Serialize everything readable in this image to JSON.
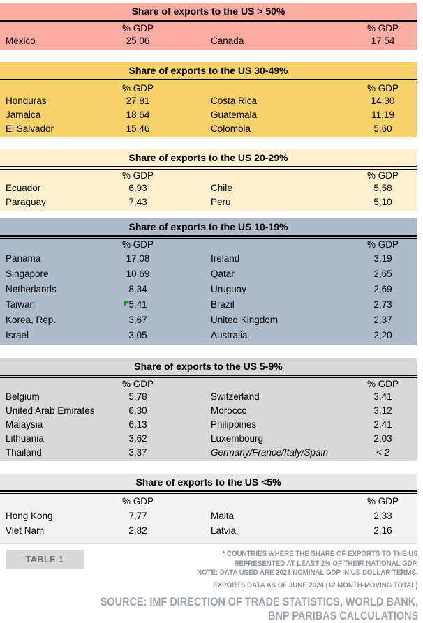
{
  "colors": {
    "band_gt50": "#FBACA3",
    "band_30_49": "#F7D26B",
    "band_20_29": "#FCF0CE",
    "band_10_19": "#AEBBCA",
    "band_5_9": "#D8D8D8",
    "band_lt5": "#F2F2F2",
    "band_lt5_title": "#E8E8E8",
    "marker_green": "#1E8C2D",
    "footnote_gray": "#8D9297",
    "source_gray": "#9DA3A9",
    "table_label_bg": "#D9D9D9"
  },
  "sections": [
    {
      "id": "gt50",
      "title": "Share of exports to the US > 50%",
      "col_header": "% GDP",
      "bg": "#FBACA3",
      "rule": "thick",
      "rows": [
        {
          "left_country": "Mexico",
          "left_value": "25,06",
          "right_country": "Canada",
          "right_value": "17,54"
        }
      ]
    },
    {
      "id": "30-49",
      "title": "Share of exports to the US 30-49%",
      "col_header": "% GDP",
      "bg": "#F7D26B",
      "rule": "double",
      "rows": [
        {
          "left_country": "Honduras",
          "left_value": "27,81",
          "right_country": "Costa Rica",
          "right_value": "14,30"
        },
        {
          "left_country": "Jamaica",
          "left_value": "18,64",
          "right_country": "Guatemala",
          "right_value": "11,19"
        },
        {
          "left_country": "El Salvador",
          "left_value": "15,46",
          "right_country": "Colombia",
          "right_value": "5,60"
        }
      ]
    },
    {
      "id": "20-29",
      "title": "Share of exports to the US 20-29%",
      "col_header": "% GDP",
      "bg": "#FCF0CE",
      "rule": "double",
      "rows": [
        {
          "left_country": "Ecuador",
          "left_value": "6,93",
          "right_country": "Chile",
          "right_value": "5,58"
        },
        {
          "left_country": "Paraguay",
          "left_value": "7,43",
          "right_country": "Peru",
          "right_value": "5,10"
        }
      ]
    },
    {
      "id": "10-19",
      "title": "Share of exports to the US 10-19%",
      "col_header": "% GDP",
      "bg": "#AEBBCA",
      "rule": "double",
      "rows": [
        {
          "left_country": "Panama",
          "left_value": "17,08",
          "right_country": "Ireland",
          "right_value": "3,19"
        },
        {
          "left_country": "Singapore",
          "left_value": "10,69",
          "right_country": "Qatar",
          "right_value": "2,65"
        },
        {
          "left_country": "Netherlands",
          "left_value": "8,34",
          "right_country": "Uruguay",
          "right_value": "2,69"
        },
        {
          "left_country": "Taiwan",
          "left_value": "5,41",
          "right_country": "Brazil",
          "right_value": "2,73",
          "left_value_flag": true
        },
        {
          "left_country": "Korea, Rep.",
          "left_value": "3,67",
          "right_country": "United Kingdom",
          "right_value": "2,37"
        },
        {
          "left_country": "Israel",
          "left_value": "3,05",
          "right_country": "Australia",
          "right_value": "2,20"
        }
      ]
    },
    {
      "id": "5-9",
      "title": "Share of exports to the US 5-9%",
      "col_header": "% GDP",
      "bg": "#D8D8D8",
      "rule": "double",
      "rows": [
        {
          "left_country": "Belgium",
          "left_value": "5,78",
          "right_country": "Switzerland",
          "right_value": "3,41"
        },
        {
          "left_country": "United Arab Emirates",
          "left_value": "6,30",
          "right_country": "Morocco",
          "right_value": "3,12"
        },
        {
          "left_country": "Malaysia",
          "left_value": "6,13",
          "right_country": "Philippines",
          "right_value": "2,41"
        },
        {
          "left_country": "Lithuania",
          "left_value": "3,62",
          "right_country": "Luxembourg",
          "right_value": "2,03"
        },
        {
          "left_country": "Thailand",
          "left_value": "3,37",
          "right_country": "Germany/France/Italy/Spain",
          "right_value": "< 2",
          "right_italic": true
        }
      ]
    },
    {
      "id": "lt5",
      "title": "Share of exports to the US <5%",
      "col_header": "% GDP",
      "bg": "#F2F2F2",
      "title_bg": "#E8E8E8",
      "rule": "double",
      "rows": [
        {
          "left_country": "Hong Kong",
          "left_value": "7,77",
          "right_country": "Malta",
          "right_value": "2,33"
        },
        {
          "left_country": "Viet Nam",
          "left_value": "2,82",
          "right_country": "Latvia",
          "right_value": "2,16"
        }
      ]
    }
  ],
  "footer": {
    "table_label": "TABLE 1",
    "footnotes": [
      "* COUNTRIES WHERE THE SHARE OF EXPORTS TO THE US",
      "REPRESENTED AT LEAST 2% OF THEIR NATIONAL GDP.",
      "NOTE: DATA USED ARE 2023 NOMINAL GDP IN US DOLLAR TERMS.",
      "EXPORTS DATA AS OF JUNE 2024 (12 MONTH-MOVING TOTAL)"
    ],
    "source_lines": [
      "SOURCE: IMF DIRECTION OF TRADE STATISTICS, WORLD BANK,",
      "BNP PARIBAS CALCULATIONS"
    ]
  },
  "chart_data": {
    "type": "table",
    "title": "Share of exports to the US, % GDP",
    "unit": "% of national GDP",
    "groups": [
      {
        "label": "Share of exports to the US > 50%",
        "entries": [
          {
            "country": "Mexico",
            "value": 25.06
          },
          {
            "country": "Canada",
            "value": 17.54
          }
        ]
      },
      {
        "label": "Share of exports to the US 30-49%",
        "entries": [
          {
            "country": "Honduras",
            "value": 27.81
          },
          {
            "country": "Costa Rica",
            "value": 14.3
          },
          {
            "country": "Jamaica",
            "value": 18.64
          },
          {
            "country": "Guatemala",
            "value": 11.19
          },
          {
            "country": "El Salvador",
            "value": 15.46
          },
          {
            "country": "Colombia",
            "value": 5.6
          }
        ]
      },
      {
        "label": "Share of exports to the US 20-29%",
        "entries": [
          {
            "country": "Ecuador",
            "value": 6.93
          },
          {
            "country": "Chile",
            "value": 5.58
          },
          {
            "country": "Paraguay",
            "value": 7.43
          },
          {
            "country": "Peru",
            "value": 5.1
          }
        ]
      },
      {
        "label": "Share of exports to the US 10-19%",
        "entries": [
          {
            "country": "Panama",
            "value": 17.08
          },
          {
            "country": "Ireland",
            "value": 3.19
          },
          {
            "country": "Singapore",
            "value": 10.69
          },
          {
            "country": "Qatar",
            "value": 2.65
          },
          {
            "country": "Netherlands",
            "value": 8.34
          },
          {
            "country": "Uruguay",
            "value": 2.69
          },
          {
            "country": "Taiwan",
            "value": 5.41
          },
          {
            "country": "Brazil",
            "value": 2.73
          },
          {
            "country": "Korea, Rep.",
            "value": 3.67
          },
          {
            "country": "United Kingdom",
            "value": 2.37
          },
          {
            "country": "Israel",
            "value": 3.05
          },
          {
            "country": "Australia",
            "value": 2.2
          }
        ]
      },
      {
        "label": "Share of exports to the US 5-9%",
        "entries": [
          {
            "country": "Belgium",
            "value": 5.78
          },
          {
            "country": "Switzerland",
            "value": 3.41
          },
          {
            "country": "United Arab Emirates",
            "value": 6.3
          },
          {
            "country": "Morocco",
            "value": 3.12
          },
          {
            "country": "Malaysia",
            "value": 6.13
          },
          {
            "country": "Philippines",
            "value": 2.41
          },
          {
            "country": "Lithuania",
            "value": 3.62
          },
          {
            "country": "Luxembourg",
            "value": 2.03
          },
          {
            "country": "Thailand",
            "value": 3.37
          },
          {
            "country": "Germany/France/Italy/Spain",
            "value": "< 2"
          }
        ]
      },
      {
        "label": "Share of exports to the US <5%",
        "entries": [
          {
            "country": "Hong Kong",
            "value": 7.77
          },
          {
            "country": "Malta",
            "value": 2.33
          },
          {
            "country": "Viet Nam",
            "value": 2.82
          },
          {
            "country": "Latvia",
            "value": 2.16
          }
        ]
      }
    ]
  }
}
